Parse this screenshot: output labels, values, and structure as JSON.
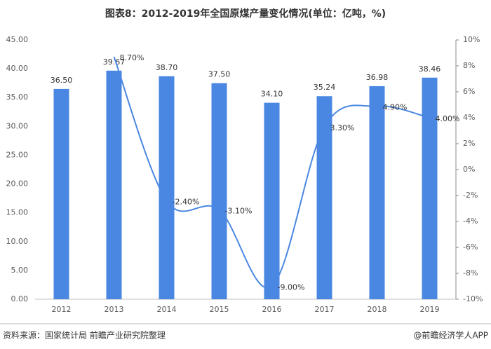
{
  "chart_data": {
    "type": "bar",
    "title": "图表8：2012-2019年全国原煤产量变化情况(单位：亿吨，%)",
    "source": "资料来源：国家统计局 前瞻产业研究院整理",
    "credit": "@前瞻经济学人APP",
    "categories": [
      "2012",
      "2013",
      "2014",
      "2015",
      "2016",
      "2017",
      "2018",
      "2019"
    ],
    "series": [
      {
        "type": "bar",
        "color": "#4a87e2",
        "values": [
          36.5,
          39.67,
          38.7,
          37.5,
          34.1,
          35.24,
          36.98,
          38.46
        ],
        "value_labels": [
          "36.50",
          "39.67",
          "38.70",
          "37.50",
          "34.10",
          "35.24",
          "36.98",
          "38.46"
        ]
      },
      {
        "type": "line",
        "axis": "y2",
        "color": "#4a87e2",
        "values": [
          null,
          8.7,
          -2.4,
          -3.1,
          -9.0,
          3.3,
          4.9,
          4.0
        ],
        "value_labels": [
          null,
          "8.70%",
          "-2.40%",
          "-3.10%",
          "-9.00%",
          "3.30%",
          "4.90%",
          "4.00%"
        ]
      }
    ],
    "ylim": [
      0,
      45
    ],
    "yticks": [
      {
        "value": 0,
        "label": "0.00"
      },
      {
        "value": 5,
        "label": "5.00"
      },
      {
        "value": 10,
        "label": "10.00"
      },
      {
        "value": 15,
        "label": "15.00"
      },
      {
        "value": 20,
        "label": "20.00"
      },
      {
        "value": 25,
        "label": "25.00"
      },
      {
        "value": 30,
        "label": "30.00"
      },
      {
        "value": 35,
        "label": "35.00"
      },
      {
        "value": 40,
        "label": "40.00"
      },
      {
        "value": 45,
        "label": "45.00"
      }
    ],
    "y2lim": [
      -10,
      10
    ],
    "y2ticks": [
      {
        "value": -10,
        "label": "-10%"
      },
      {
        "value": -8,
        "label": "-8%"
      },
      {
        "value": -6,
        "label": "-6%"
      },
      {
        "value": -4,
        "label": "-4%"
      },
      {
        "value": -2,
        "label": "-2%"
      },
      {
        "value": 0,
        "label": "0%"
      },
      {
        "value": 2,
        "label": "2%"
      },
      {
        "value": 4,
        "label": "4%"
      },
      {
        "value": 6,
        "label": "6%"
      },
      {
        "value": 8,
        "label": "8%"
      },
      {
        "value": 10,
        "label": "10%"
      }
    ],
    "grid": false
  }
}
